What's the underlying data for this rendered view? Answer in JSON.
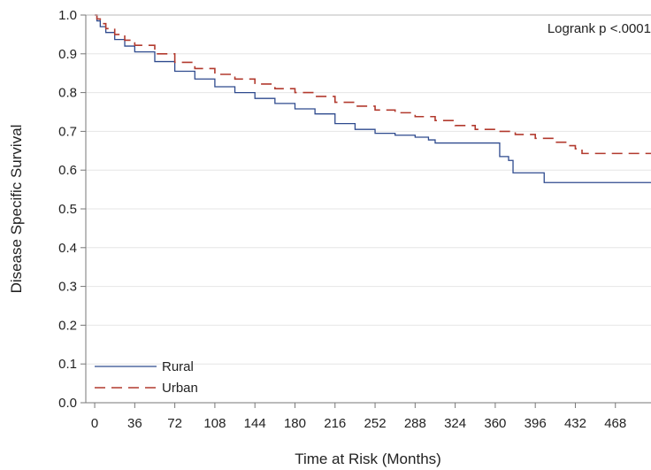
{
  "chart_data": {
    "type": "line",
    "title": "",
    "xlabel": "Time at Risk (Months)",
    "ylabel": "Disease Specific Survival",
    "xlim": [
      -8,
      500
    ],
    "ylim": [
      0,
      1.0
    ],
    "x_ticks": [
      0,
      36,
      72,
      108,
      144,
      180,
      216,
      252,
      288,
      324,
      360,
      396,
      432,
      468
    ],
    "x_tick_labels": [
      "0",
      "36",
      "72",
      "108",
      "144",
      "180",
      "216",
      "252",
      "288",
      "324",
      "360",
      "396",
      "432",
      "468"
    ],
    "y_ticks": [
      0.0,
      0.1,
      0.2,
      0.3,
      0.4,
      0.5,
      0.6,
      0.7,
      0.8,
      0.9,
      1.0
    ],
    "y_tick_labels": [
      "0.0",
      "0.1",
      "0.2",
      "0.3",
      "0.4",
      "0.5",
      "0.6",
      "0.7",
      "0.8",
      "0.9",
      "1.0"
    ],
    "grid": "horizontal",
    "legend_position": "bottom-left",
    "annotations": [
      {
        "text": "Logrank p <.0001",
        "position": "top-right"
      }
    ],
    "series": [
      {
        "name": "Rural",
        "color": "#2e4a8e",
        "style": "solid",
        "step": true,
        "points": [
          [
            0,
            1.0
          ],
          [
            2,
            0.985
          ],
          [
            5,
            0.97
          ],
          [
            10,
            0.955
          ],
          [
            18,
            0.937
          ],
          [
            27,
            0.92
          ],
          [
            36,
            0.905
          ],
          [
            54,
            0.88
          ],
          [
            72,
            0.855
          ],
          [
            90,
            0.835
          ],
          [
            108,
            0.815
          ],
          [
            126,
            0.8
          ],
          [
            144,
            0.785
          ],
          [
            162,
            0.772
          ],
          [
            180,
            0.758
          ],
          [
            198,
            0.745
          ],
          [
            216,
            0.72
          ],
          [
            234,
            0.705
          ],
          [
            252,
            0.695
          ],
          [
            270,
            0.69
          ],
          [
            288,
            0.685
          ],
          [
            300,
            0.678
          ],
          [
            306,
            0.67
          ],
          [
            324,
            0.67
          ],
          [
            340,
            0.67
          ],
          [
            360,
            0.67
          ],
          [
            364,
            0.635
          ],
          [
            372,
            0.625
          ],
          [
            376,
            0.593
          ],
          [
            390,
            0.593
          ],
          [
            403,
            0.593
          ],
          [
            404,
            0.568
          ],
          [
            500,
            0.568
          ]
        ]
      },
      {
        "name": "Urban",
        "color": "#b23a2e",
        "style": "dashed",
        "step": true,
        "points": [
          [
            0,
            1.0
          ],
          [
            2,
            0.99
          ],
          [
            5,
            0.978
          ],
          [
            10,
            0.965
          ],
          [
            18,
            0.95
          ],
          [
            27,
            0.935
          ],
          [
            36,
            0.922
          ],
          [
            54,
            0.9
          ],
          [
            72,
            0.878
          ],
          [
            90,
            0.862
          ],
          [
            108,
            0.847
          ],
          [
            126,
            0.835
          ],
          [
            144,
            0.822
          ],
          [
            162,
            0.81
          ],
          [
            180,
            0.8
          ],
          [
            198,
            0.79
          ],
          [
            216,
            0.775
          ],
          [
            234,
            0.765
          ],
          [
            252,
            0.755
          ],
          [
            270,
            0.748
          ],
          [
            288,
            0.738
          ],
          [
            306,
            0.728
          ],
          [
            324,
            0.715
          ],
          [
            342,
            0.705
          ],
          [
            360,
            0.7
          ],
          [
            378,
            0.692
          ],
          [
            396,
            0.682
          ],
          [
            414,
            0.672
          ],
          [
            426,
            0.663
          ],
          [
            432,
            0.655
          ],
          [
            438,
            0.643
          ],
          [
            450,
            0.643
          ],
          [
            500,
            0.643
          ]
        ]
      }
    ]
  }
}
